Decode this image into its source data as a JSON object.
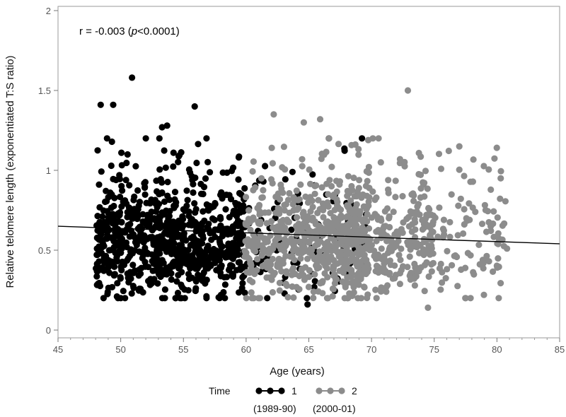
{
  "chart_data": {
    "type": "scatter",
    "title": "",
    "xlabel": "Age (years)",
    "ylabel": "Relative telomere length (exponentiated T:S ratio)",
    "xlim": [
      45,
      85
    ],
    "ylim": [
      0,
      2
    ],
    "x_ticks": [
      45,
      50,
      55,
      60,
      65,
      70,
      75,
      80,
      85
    ],
    "y_ticks": [
      0,
      0.5,
      1,
      1.5,
      2
    ],
    "grid": false,
    "annotation": {
      "prefix": "r = -0.003 (",
      "italic": "p",
      "suffix": "<0.0001)"
    },
    "legend": {
      "title": "Time",
      "position": "bottom",
      "entries": [
        {
          "label": "1",
          "sublabel": "(1989-90)",
          "color": "#000000"
        },
        {
          "label": "2",
          "sublabel": "(2000-01)",
          "color": "#8c8c8c"
        }
      ]
    },
    "regression": {
      "x": [
        45,
        85
      ],
      "y": [
        0.65,
        0.54
      ],
      "color": "#000000"
    },
    "series": [
      {
        "name": "1",
        "color": "#000000",
        "points_description": "approx. 900 observations, ages 48–70 (dense 48–60), values mostly 0.3–0.9",
        "notable_points": [
          [
            50.9,
            1.58
          ],
          [
            48.4,
            1.41
          ],
          [
            49.4,
            1.41
          ],
          [
            55.9,
            1.4
          ],
          [
            53.7,
            1.28
          ],
          [
            53.3,
            1.27
          ],
          [
            49.7,
            0.21
          ],
          [
            58.0,
            0.22
          ],
          [
            64.9,
            0.16
          ],
          [
            48.2,
            0.29
          ]
        ]
      },
      {
        "name": "2",
        "color": "#8c8c8c",
        "points_description": "approx. 1000 observations, ages 60–81 (densest 60–72), values mostly 0.3–0.9",
        "notable_points": [
          [
            72.9,
            1.5
          ],
          [
            62.2,
            1.35
          ],
          [
            65.9,
            1.32
          ],
          [
            64.6,
            1.3
          ],
          [
            74.5,
            0.14
          ],
          [
            61.1,
            0.2
          ],
          [
            70.4,
            0.2
          ],
          [
            80.3,
            0.95
          ],
          [
            77.0,
            1.15
          ]
        ]
      }
    ]
  }
}
